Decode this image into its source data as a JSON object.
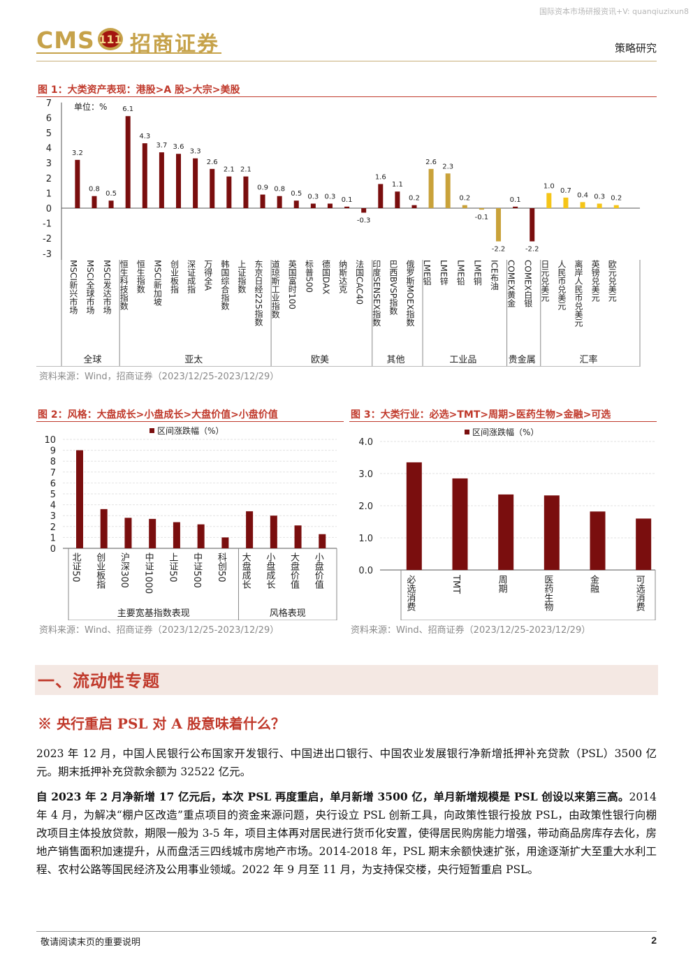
{
  "watermark": "国际资本市场研报资讯+V: quanqiuzixun8",
  "header": {
    "logo_text": "CMS",
    "logo_badge": "111",
    "logo_cn": "招商证券",
    "doc_type": "策略研究"
  },
  "fig1": {
    "title": "图 1：大类资产表现：港股>A 股>大宗>美股",
    "unit": "单位：%",
    "source": "资料来源：Wind，招商证券（2023/12/25-2023/12/29）",
    "colors": {
      "global": "#7a0e0e",
      "asia": "#7a0e0e",
      "euus": "#7a0e0e",
      "other": "#7a0e0e",
      "industrial": "#c9a23a",
      "precious": "#7a0e0e",
      "fx": "#f5c518"
    }
  },
  "fig2": {
    "title": "图 2：风格：大盘成长>小盘成长>大盘价值>小盘价值",
    "legend": "区间涨跌幅（%）",
    "group_labels": [
      "主要宽基指数表现",
      "风格表现"
    ],
    "source": "资料来源：Wind、招商证券（2023/12/25-2023/12/29）"
  },
  "fig3": {
    "title": "图 3：大类行业：必选>TMT>周期>医药生物>金融>可选",
    "legend": "区间涨跌幅（%）",
    "source": "资料来源：Wind、招商证券（2023/12/25-2023/12/29）"
  },
  "chart_data": [
    {
      "type": "bar",
      "title": "大类资产表现：港股>A 股>大宗>美股",
      "ylabel": "单位：%",
      "ylim": [
        -3,
        7
      ],
      "yticks": [
        7,
        6,
        5,
        4,
        3,
        2,
        1,
        0,
        -1,
        -2,
        -3
      ],
      "groups": [
        {
          "name": "全球",
          "categories": [
            "MSCI新兴市场",
            "MSCI全球市场",
            "MSCI发达市场"
          ],
          "values": [
            3.2,
            0.8,
            0.5
          ],
          "labels": [
            "3.2",
            "0.8",
            "0.5"
          ]
        },
        {
          "name": "亚太",
          "categories": [
            "恒生科技指数",
            "恒生指数",
            "MSCI新加坡",
            "创业板指",
            "深证成指",
            "万得全A",
            "韩国综合指数",
            "上证指数",
            "东京日经225指数"
          ],
          "values": [
            6.1,
            4.3,
            3.7,
            3.6,
            3.3,
            2.6,
            2.1,
            2.1,
            0.9
          ],
          "labels": [
            "6.1",
            "4.3",
            "3.7",
            "3.6",
            "3.3",
            "2.6",
            "2.1",
            "2.1",
            "0.9"
          ]
        },
        {
          "name": "欧美",
          "categories": [
            "道琼斯工业指数",
            "英国富时100",
            "标普500",
            "德国DAX",
            "纳斯达克",
            "法国CAC40"
          ],
          "values": [
            0.8,
            0.5,
            0.3,
            0.3,
            0.1,
            -0.3
          ],
          "labels": [
            "0.8",
            "0.5",
            "0.3",
            "0.3",
            "0.1",
            "-0.3"
          ]
        },
        {
          "name": "其他",
          "categories": [
            "印度SENSEX指数",
            "巴西BVSP指数",
            "俄罗斯MOEX指数"
          ],
          "values": [
            1.6,
            1.1,
            0.2
          ],
          "labels": [
            "1.6",
            "1.1",
            "0.2"
          ]
        },
        {
          "name": "工业品",
          "categories": [
            "LME铝",
            "LME锌",
            "LME铅",
            "LME铜",
            "ICE布油"
          ],
          "values": [
            2.6,
            2.3,
            0.2,
            -0.1,
            -2.2
          ],
          "labels": [
            "2.6",
            "2.3",
            "0.2",
            "-0.1",
            "-2.2"
          ]
        },
        {
          "name": "贵金属",
          "categories": [
            "COMEX黄金",
            "COMEX白银"
          ],
          "values": [
            0.1,
            -2.2
          ],
          "labels": [
            "0.1",
            "-2.2"
          ]
        },
        {
          "name": "汇率",
          "categories": [
            "日元兑美元",
            "人民币兑美元",
            "离岸人民币兑美元",
            "英镑兑美元",
            "欧元兑美元"
          ],
          "values": [
            1.0,
            0.7,
            0.4,
            0.3,
            0.2
          ],
          "labels": [
            "1.0",
            "0.7",
            "0.4",
            "0.3",
            "0.2"
          ]
        }
      ]
    },
    {
      "type": "bar",
      "title": "风格：大盘成长>小盘成长>大盘价值>小盘价值",
      "ylim": [
        0,
        10
      ],
      "yticks": [
        10,
        9,
        8,
        7,
        6,
        5,
        4,
        3,
        2,
        1,
        0
      ],
      "categories": [
        "北证50",
        "创业板指",
        "沪深300",
        "中证1000",
        "上证50",
        "中证500",
        "科创50",
        "大盘成长",
        "小盘成长",
        "大盘价值",
        "小盘价值"
      ],
      "series": [
        {
          "name": "区间涨跌幅（%）",
          "values": [
            9.0,
            3.6,
            2.8,
            2.7,
            2.4,
            2.2,
            1.0,
            3.4,
            3.0,
            2.1,
            1.3
          ]
        }
      ],
      "group_labels": [
        "主要宽基指数表现",
        "风格表现"
      ]
    },
    {
      "type": "bar",
      "title": "大类行业：必选>TMT>周期>医药生物>金融>可选",
      "ylim": [
        0,
        4
      ],
      "yticks": [
        "4.0",
        "3.0",
        "2.0",
        "1.0",
        "0.0"
      ],
      "categories": [
        "必选消费",
        "TMT",
        "周期",
        "医药生物",
        "金融",
        "可选消费"
      ],
      "series": [
        {
          "name": "区间涨跌幅（%）",
          "values": [
            3.35,
            2.85,
            2.35,
            2.32,
            1.82,
            1.6
          ]
        }
      ]
    }
  ],
  "section": {
    "title": "一、流动性专题",
    "subtitle": "※ 央行重启 PSL 对 A 股意味着什么？",
    "p1": "2023 年 12 月，中国人民银行公布国家开发银行、中国进出口银行、中国农业发展银行净新增抵押补充贷款（PSL）3500 亿元。期末抵押补充贷款余额为 32522 亿元。",
    "p2_bold": "自 2023 年 2 月净新增 17 亿元后，本次 PSL 再度重启，单月新增 3500 亿，单月新增规模是 PSL 创设以来第三高。",
    "p2_rest": "2014 年 4 月，为解决“棚户区改造”重点项目的资金来源问题，央行设立 PSL 创新工具，向政策性银行投放 PSL，由政策性银行向棚改项目主体投放贷款，期限一般为 3-5 年，项目主体再对居民进行货币化安置，使得居民购房能力增强，带动商品房库存去化，房地产销售面积加速提升，从而盘活三四线城市房地产市场。2014-2018 年，PSL 期末余额快速扩张，用途逐渐扩大至重大水利工程、农村公路等国民经济及公用事业领域。2022 年 9 月至 11 月，为支持保交楼，央行短暂重启 PSL。"
  },
  "footer": {
    "note": "敬请阅读末页的重要说明",
    "page": "2"
  }
}
